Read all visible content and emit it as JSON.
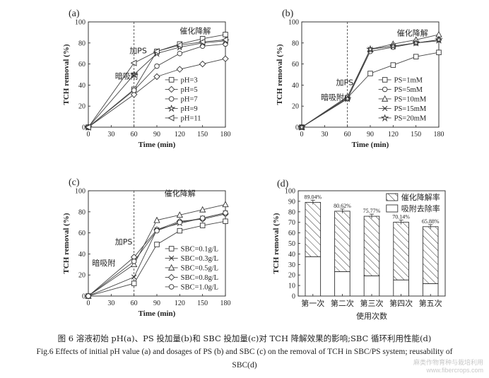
{
  "charts": [
    {
      "letter": "(a)",
      "type": "line",
      "xlabel": "Time (min)",
      "ylabel": "TCH removal (%)",
      "xlim": [
        0,
        180
      ],
      "ylim": [
        0,
        100
      ],
      "xticks": [
        0,
        30,
        60,
        90,
        120,
        150,
        180
      ],
      "yticks": [
        0,
        20,
        40,
        60,
        80,
        100
      ],
      "dashed_x": 60,
      "annotations": [
        {
          "text": "加PS",
          "x": 54,
          "y": 70
        },
        {
          "text": "暗吸附",
          "x": 35,
          "y": 46
        },
        {
          "text": "催化降解",
          "x": 120,
          "y": 89
        }
      ],
      "legend_position": "right-center",
      "series": [
        {
          "name": "pH=3",
          "marker": "square",
          "x": [
            0,
            60,
            90,
            120,
            150,
            180
          ],
          "y": [
            0,
            36,
            72,
            79,
            84,
            88
          ]
        },
        {
          "name": "pH=5",
          "marker": "diamond",
          "x": [
            0,
            60,
            90,
            120,
            150,
            180
          ],
          "y": [
            0,
            31,
            48,
            55,
            60,
            65
          ]
        },
        {
          "name": "pH=7",
          "marker": "circle",
          "x": [
            0,
            60,
            90,
            120,
            150,
            180
          ],
          "y": [
            0,
            35,
            58,
            70,
            77,
            79
          ]
        },
        {
          "name": "pH=9",
          "marker": "star",
          "x": [
            0,
            60,
            90,
            120,
            150,
            180
          ],
          "y": [
            0,
            50,
            70,
            76,
            80,
            82
          ]
        },
        {
          "name": "pH=11",
          "marker": "tri-left",
          "x": [
            0,
            60,
            90,
            120,
            150,
            180
          ],
          "y": [
            0,
            61,
            72,
            78,
            81,
            83
          ]
        }
      ]
    },
    {
      "letter": "(b)",
      "type": "line",
      "xlabel": "Time (min)",
      "ylabel": "TCH removal  (%)",
      "xlim": [
        0,
        180
      ],
      "ylim": [
        0,
        100
      ],
      "xticks": [
        0,
        30,
        60,
        90,
        120,
        150,
        180
      ],
      "yticks": [
        0,
        20,
        40,
        60,
        80,
        100
      ],
      "dashed_x": 60,
      "annotations": [
        {
          "text": "加PS",
          "x": 45,
          "y": 40
        },
        {
          "text": "暗吸附",
          "x": 25,
          "y": 26
        },
        {
          "text": "催化降解",
          "x": 125,
          "y": 87
        }
      ],
      "legend_position": "right-center",
      "series": [
        {
          "name": "PS=1mM",
          "marker": "square",
          "x": [
            0,
            60,
            90,
            120,
            150,
            180
          ],
          "y": [
            0,
            28,
            51,
            59,
            67,
            71
          ]
        },
        {
          "name": "PS=5mM",
          "marker": "circle",
          "x": [
            0,
            60,
            90,
            120,
            150,
            180
          ],
          "y": [
            0,
            27,
            72,
            76,
            80,
            83
          ]
        },
        {
          "name": "PS=10mM",
          "marker": "triangle",
          "x": [
            0,
            60,
            90,
            120,
            150,
            180
          ],
          "y": [
            0,
            29,
            74,
            79,
            83,
            88
          ]
        },
        {
          "name": "PS=15mM",
          "marker": "cross",
          "x": [
            0,
            60,
            90,
            120,
            150,
            180
          ],
          "y": [
            0,
            27,
            74,
            77,
            80,
            82
          ]
        },
        {
          "name": "PS=20mM",
          "marker": "star",
          "x": [
            0,
            60,
            90,
            120,
            150,
            180
          ],
          "y": [
            0,
            27,
            74,
            77,
            80,
            83
          ]
        }
      ]
    },
    {
      "letter": "(c)",
      "type": "line",
      "xlabel": "Time (min)",
      "ylabel": "TCH removal (%)",
      "xlim": [
        0,
        180
      ],
      "ylim": [
        0,
        100
      ],
      "xticks": [
        0,
        30,
        60,
        90,
        120,
        150,
        180
      ],
      "yticks": [
        0,
        20,
        40,
        60,
        80,
        100
      ],
      "dashed_x": 60,
      "annotations": [
        {
          "text": "加PS",
          "x": 35,
          "y": 49
        },
        {
          "text": "暗吸附",
          "x": 5,
          "y": 29
        },
        {
          "text": "催化降解",
          "x": 100,
          "y": 95
        }
      ],
      "legend_position": "right-center",
      "series": [
        {
          "name": "SBC=0.1g/L",
          "marker": "square",
          "x": [
            0,
            60,
            90,
            120,
            150,
            180
          ],
          "y": [
            0,
            12,
            49,
            62,
            67,
            71
          ]
        },
        {
          "name": "SBC=0.3g/L",
          "marker": "cross",
          "x": [
            0,
            60,
            90,
            120,
            150,
            180
          ],
          "y": [
            0,
            18,
            63,
            69,
            74,
            79
          ]
        },
        {
          "name": "SBC=0.5g/L",
          "marker": "triangle",
          "x": [
            0,
            60,
            90,
            120,
            150,
            180
          ],
          "y": [
            0,
            30,
            72,
            77,
            82,
            87
          ]
        },
        {
          "name": "SBC=0.8g/L",
          "marker": "diamond",
          "x": [
            0,
            60,
            90,
            120,
            150,
            180
          ],
          "y": [
            0,
            37,
            63,
            71,
            73,
            78
          ]
        },
        {
          "name": "SBC=1.0g/L",
          "marker": "circle",
          "x": [
            0,
            60,
            90,
            120,
            150,
            180
          ],
          "y": [
            0,
            33,
            62,
            70,
            74,
            79
          ]
        }
      ]
    },
    {
      "letter": "(d)",
      "type": "bar",
      "xlabel": "使用次数",
      "ylabel": "TCH removal (%)",
      "ylim": [
        0,
        100
      ],
      "yticks": [
        0,
        10,
        20,
        30,
        40,
        50,
        60,
        70,
        80,
        90,
        100
      ],
      "categories": [
        "第一次",
        "第二次",
        "第三次",
        "第四次",
        "第五次"
      ],
      "series": [
        {
          "name": "催化降解率",
          "pattern": "hatch",
          "values": [
            51.6,
            57.4,
            56.6,
            54.9,
            54.1
          ]
        },
        {
          "name": "吸附去除率",
          "pattern": "blank",
          "values": [
            37.4,
            23.2,
            19.2,
            15.3,
            11.8
          ]
        }
      ],
      "total_labels": [
        "89.04%",
        "80.62%",
        "75.77%",
        "70.14%",
        "65.88%"
      ],
      "totals": [
        89.04,
        80.62,
        75.77,
        70.14,
        65.88
      ],
      "legend_position": "top-right"
    }
  ],
  "caption": {
    "cn": "图 6    溶液初始 pH(a)、PS 投加量(b)和 SBC 投加量(c)对 TCH 降解效果的影响;SBC 循环利用性能(d)",
    "en1": "Fig.6    Effects of initial pH value (a) and dosages of PS (b) and SBC (c) on the removal of TCH in SBC/PS system; reusability of",
    "en2": "SBC(d)"
  },
  "watermark": {
    "line1": "麻类作物育种与栽培利用",
    "line2": "www.fibercrops.com"
  }
}
